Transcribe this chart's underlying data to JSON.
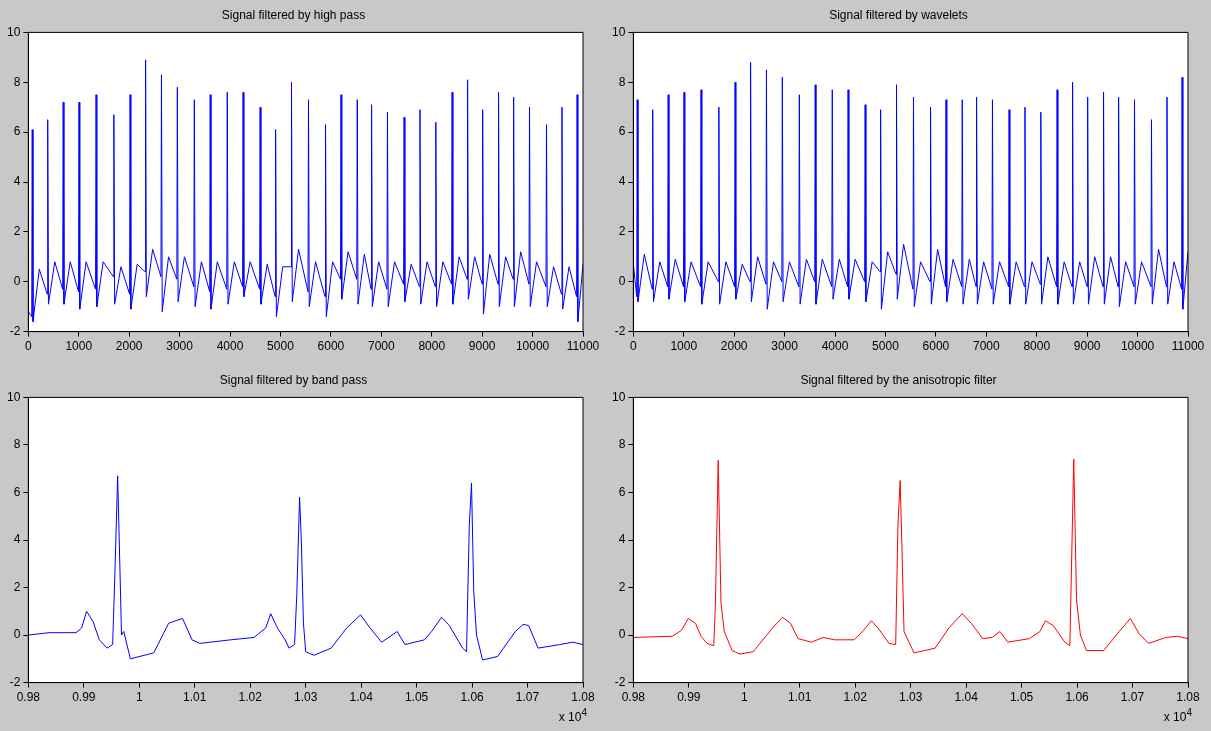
{
  "chart_data": [
    {
      "type": "line",
      "title": "Signal filtered by high pass",
      "color": "#0000ff",
      "xlim": [
        0,
        11000
      ],
      "xticks": [
        0,
        1000,
        2000,
        3000,
        4000,
        5000,
        6000,
        7000,
        8000,
        9000,
        10000,
        11000
      ],
      "ylim": [
        -2,
        10
      ],
      "yticks": [
        -2,
        0,
        2,
        4,
        6,
        8,
        10
      ],
      "x": [
        0,
        67,
        77,
        92,
        217,
        374,
        384,
        399,
        524,
        681,
        691,
        706,
        831,
        995,
        1005,
        1020,
        1145,
        1333,
        1343,
        1358,
        1483,
        1686,
        1696,
        1711,
        1836,
        2008,
        2018,
        2033,
        2158,
        2315,
        2325,
        2340,
        2465,
        2630,
        2640,
        2655,
        2780,
        2945,
        2955,
        2970,
        3095,
        3282,
        3292,
        3307,
        3432,
        3597,
        3607,
        3622,
        3747,
        3935,
        3945,
        3960,
        4085,
        4249,
        4259,
        4274,
        4399,
        4587,
        4597,
        4612,
        4737,
        4894,
        4904,
        4919,
        5044,
        5209,
        5219,
        5234,
        5359,
        5546,
        5556,
        5571,
        5696,
        5884,
        5894,
        5909,
        6034,
        6191,
        6201,
        6216,
        6341,
        6513,
        6523,
        6538,
        6663,
        6797,
        6807,
        6822,
        6947,
        7112,
        7122,
        7137,
        7262,
        7442,
        7452,
        7467,
        7592,
        7757,
        7767,
        7782,
        7907,
        8071,
        8081,
        8096,
        8221,
        8394,
        8404,
        8419,
        8544,
        8701,
        8711,
        8726,
        8851,
        9000,
        9010,
        9025,
        9150,
        9315,
        9325,
        9340,
        9465,
        9614,
        9624,
        9639,
        9764,
        9929,
        9939,
        9954,
        10079,
        10266,
        10276,
        10291,
        10416,
        10573,
        10583,
        10598,
        10723,
        10873,
        10883,
        10898,
        11000
      ],
      "values": [
        -1.2,
        -1.4,
        6.1,
        -1.6,
        0.5,
        -0.5,
        6.5,
        -0.9,
        0.8,
        -0.3,
        7.2,
        -0.9,
        0.8,
        -0.4,
        7.2,
        -1.1,
        0.8,
        -0.3,
        7.5,
        -1.0,
        0.8,
        0.2,
        6.7,
        -0.9,
        0.6,
        -0.5,
        7.5,
        -1.1,
        0.7,
        0.4,
        8.9,
        -0.6,
        1.3,
        0.2,
        8.3,
        -1.2,
        1.0,
        0.1,
        7.8,
        -0.8,
        1.0,
        -0.2,
        7.3,
        -1.0,
        0.8,
        -0.4,
        7.5,
        -1.1,
        0.8,
        -0.3,
        7.6,
        -0.9,
        0.8,
        -0.2,
        7.6,
        -0.6,
        0.8,
        -0.3,
        7.0,
        -0.9,
        0.7,
        -0.6,
        6.1,
        -1.4,
        0.6,
        0.6,
        8.0,
        -0.8,
        1.3,
        -0.4,
        7.3,
        -1.0,
        0.8,
        -0.6,
        6.3,
        -1.4,
        0.8,
        0.1,
        7.5,
        -0.7,
        1.2,
        0.1,
        7.3,
        -0.9,
        1.1,
        -0.3,
        7.1,
        -1.0,
        0.8,
        -0.3,
        6.8,
        -1.0,
        0.8,
        -0.1,
        6.6,
        -0.8,
        0.7,
        -0.2,
        6.9,
        -0.9,
        0.8,
        -0.2,
        6.4,
        -1.0,
        0.8,
        -0.1,
        7.6,
        -0.9,
        1.0,
        0.1,
        8.1,
        -0.7,
        1.0,
        -0.1,
        6.9,
        -1.3,
        1.1,
        -0.1,
        7.6,
        -1.0,
        1.0,
        0.1,
        7.4,
        -1.0,
        1.2,
        -0.1,
        7.0,
        -1.0,
        0.8,
        -0.2,
        6.3,
        -1.0,
        0.6,
        -0.5,
        7.0,
        -1.1,
        0.6,
        -0.6,
        7.5,
        -1.6,
        0.7
      ]
    },
    {
      "type": "line",
      "title": "Signal filtered by wavelets",
      "color": "#0000ff",
      "xlim": [
        0,
        11000
      ],
      "xticks": [
        0,
        1000,
        2000,
        3000,
        4000,
        5000,
        6000,
        7000,
        8000,
        9000,
        10000,
        11000
      ],
      "ylim": [
        -2,
        10
      ],
      "yticks": [
        -2,
        0,
        2,
        4,
        6,
        8,
        10
      ],
      "x": [
        0,
        67,
        77,
        92,
        217,
        374,
        384,
        399,
        524,
        681,
        691,
        706,
        831,
        995,
        1005,
        1020,
        1145,
        1333,
        1343,
        1358,
        1483,
        1686,
        1696,
        1711,
        1836,
        2008,
        2018,
        2033,
        2158,
        2315,
        2325,
        2340,
        2465,
        2630,
        2640,
        2655,
        2780,
        2945,
        2955,
        2970,
        3095,
        3282,
        3292,
        3307,
        3432,
        3597,
        3607,
        3622,
        3747,
        3935,
        3945,
        3960,
        4085,
        4249,
        4259,
        4274,
        4399,
        4587,
        4597,
        4612,
        4737,
        4894,
        4904,
        4919,
        5044,
        5209,
        5219,
        5234,
        5359,
        5546,
        5556,
        5571,
        5696,
        5884,
        5894,
        5909,
        6034,
        6191,
        6201,
        6216,
        6341,
        6513,
        6523,
        6538,
        6663,
        6797,
        6807,
        6822,
        6947,
        7112,
        7122,
        7137,
        7262,
        7442,
        7452,
        7467,
        7592,
        7757,
        7767,
        7782,
        7907,
        8071,
        8081,
        8096,
        8221,
        8394,
        8404,
        8419,
        8544,
        8701,
        8711,
        8726,
        8851,
        9000,
        9010,
        9025,
        9150,
        9315,
        9325,
        9340,
        9465,
        9614,
        9624,
        9639,
        9764,
        9929,
        9939,
        9954,
        10079,
        10266,
        10276,
        10291,
        10416,
        10573,
        10583,
        10598,
        10723,
        10873,
        10883,
        10898,
        11000
      ],
      "values": [
        0.7,
        -0.6,
        7.3,
        -0.8,
        1.1,
        -0.3,
        6.9,
        -0.8,
        0.8,
        -0.2,
        7.5,
        -0.7,
        0.9,
        -0.2,
        7.6,
        -0.8,
        0.8,
        -0.2,
        7.7,
        -0.9,
        0.8,
        0.0,
        7.0,
        -0.9,
        0.8,
        -0.2,
        8.0,
        -0.7,
        0.7,
        0.0,
        8.8,
        -0.8,
        1.0,
        -0.1,
        8.5,
        -1.1,
        0.8,
        0.0,
        8.2,
        -0.8,
        0.8,
        -0.2,
        7.5,
        -0.9,
        0.9,
        0.0,
        7.9,
        -0.9,
        0.9,
        -0.2,
        7.7,
        -0.7,
        0.9,
        -0.2,
        7.7,
        -0.7,
        0.9,
        0.0,
        7.1,
        -0.8,
        0.8,
        0.4,
        6.9,
        -1.1,
        1.2,
        0.3,
        7.9,
        -0.7,
        1.5,
        -0.3,
        7.4,
        -1.0,
        0.8,
        0.0,
        7.0,
        -0.9,
        1.3,
        -0.2,
        7.3,
        -0.8,
        0.9,
        -0.2,
        7.3,
        -0.9,
        0.9,
        -0.2,
        7.4,
        -0.9,
        0.8,
        -0.3,
        7.3,
        -0.9,
        0.8,
        -0.2,
        6.9,
        -0.9,
        0.8,
        -0.2,
        7.0,
        -0.9,
        0.8,
        -0.1,
        6.8,
        -0.9,
        1.0,
        -0.2,
        7.7,
        -0.9,
        0.8,
        -0.2,
        8.0,
        -0.9,
        0.8,
        -0.2,
        7.4,
        -0.9,
        1.0,
        -0.2,
        7.6,
        -0.9,
        1.0,
        -0.2,
        7.4,
        -1.0,
        0.8,
        -0.2,
        7.3,
        -0.9,
        0.8,
        -0.2,
        6.5,
        -0.9,
        1.3,
        -0.2,
        7.4,
        -0.9,
        0.8,
        -0.3,
        8.2,
        -1.1,
        1.2
      ]
    },
    {
      "type": "line",
      "title": "Signal filtered by band pass",
      "color": "#0000ff",
      "annotations": [
        "x 10$^{4}$"
      ],
      "xlim": [
        0.98,
        1.08
      ],
      "xticks": [
        0.98,
        0.99,
        1,
        1.01,
        1.02,
        1.03,
        1.04,
        1.05,
        1.06,
        1.07,
        1.08
      ],
      "ylim": [
        -2,
        10
      ],
      "yticks": [
        -2,
        0,
        2,
        4,
        6,
        8,
        10
      ],
      "x": [
        0.98,
        0.9837,
        0.9886,
        0.9896,
        0.9905,
        0.9917,
        0.9928,
        0.9942,
        0.9952,
        0.9956,
        0.9961,
        0.9965,
        0.9968,
        0.9972,
        0.9984,
        1.0026,
        1.0053,
        1.0078,
        1.0095,
        1.0109,
        1.0165,
        1.0207,
        1.0228,
        1.0237,
        1.0249,
        1.0263,
        1.027,
        1.028,
        1.0284,
        1.0289,
        1.0292,
        1.0296,
        1.03,
        1.0315,
        1.0346,
        1.0374,
        1.0399,
        1.0416,
        1.0437,
        1.0465,
        1.0479,
        1.0514,
        1.0527,
        1.0545,
        1.0559,
        1.0583,
        1.059,
        1.0595,
        1.0599,
        1.0603,
        1.0608,
        1.0619,
        1.0646,
        1.0678,
        1.0692,
        1.0702,
        1.0719,
        1.0758,
        1.0782,
        1.08
      ],
      "values": [
        0,
        0.1,
        0.1,
        0.3,
        1.0,
        0.55,
        -0.2,
        -0.55,
        -0.4,
        2.55,
        6.7,
        2.9,
        0,
        0.15,
        -1.0,
        -0.75,
        0.5,
        0.7,
        -0.2,
        -0.35,
        -0.2,
        -0.1,
        0.3,
        0.9,
        0.3,
        -0.2,
        -0.55,
        -0.4,
        1.7,
        5.8,
        4.1,
        0.5,
        -0.7,
        -0.85,
        -0.55,
        0.3,
        0.85,
        0.3,
        -0.3,
        0.15,
        -0.4,
        -0.2,
        0.15,
        0.75,
        0.4,
        -0.55,
        -0.7,
        4.6,
        6.4,
        1.85,
        0,
        -1.05,
        -0.9,
        0.15,
        0.45,
        0.4,
        -0.55,
        -0.4,
        -0.3,
        -0.4
      ]
    },
    {
      "type": "line",
      "title": "Signal filtered by the anisotropic filter",
      "color": "#ff0000",
      "annotations": [
        "x 10$^{4}$"
      ],
      "xlim": [
        0.98,
        1.08
      ],
      "xticks": [
        0.98,
        0.99,
        1,
        1.01,
        1.02,
        1.03,
        1.04,
        1.05,
        1.06,
        1.07,
        1.08
      ],
      "ylim": [
        -2,
        10
      ],
      "yticks": [
        -2,
        0,
        2,
        4,
        6,
        8,
        10
      ],
      "x": [
        0.98,
        0.987,
        0.9887,
        0.9899,
        0.9912,
        0.9922,
        0.9933,
        0.9945,
        0.9948,
        0.9953,
        0.9958,
        0.9964,
        0.9978,
        0.9992,
        1.0016,
        1.0051,
        1.0069,
        1.0083,
        1.0097,
        1.0121,
        1.0142,
        1.0163,
        1.0198,
        1.0215,
        1.0229,
        1.0241,
        1.0261,
        1.0273,
        1.0277,
        1.0281,
        1.0284,
        1.0288,
        1.0306,
        1.0344,
        1.0369,
        1.0393,
        1.0409,
        1.043,
        1.0447,
        1.0461,
        1.0475,
        1.0514,
        1.0533,
        1.0543,
        1.0557,
        1.0578,
        1.0587,
        1.059,
        1.0594,
        1.0599,
        1.0606,
        1.0617,
        1.0648,
        1.0676,
        1.0696,
        1.0712,
        1.0729,
        1.076,
        1.0781,
        1.08
      ],
      "values": [
        -0.1,
        -0.05,
        0.2,
        0.7,
        0.5,
        -0.05,
        -0.35,
        -0.45,
        1.35,
        7.35,
        1.35,
        0.15,
        -0.65,
        -0.8,
        -0.7,
        0.3,
        0.75,
        0.5,
        -0.15,
        -0.3,
        -0.1,
        -0.2,
        -0.2,
        0.2,
        0.6,
        0.3,
        -0.35,
        -0.4,
        4.6,
        6.5,
        3.9,
        0.15,
        -0.75,
        -0.55,
        0.3,
        0.9,
        0.5,
        -0.15,
        -0.1,
        0.15,
        -0.3,
        -0.15,
        0.15,
        0.6,
        0.4,
        -0.3,
        -0.45,
        2.9,
        7.4,
        1.5,
        0,
        -0.65,
        -0.65,
        0.15,
        0.7,
        0.05,
        -0.35,
        -0.1,
        -0.05,
        -0.15
      ]
    }
  ]
}
